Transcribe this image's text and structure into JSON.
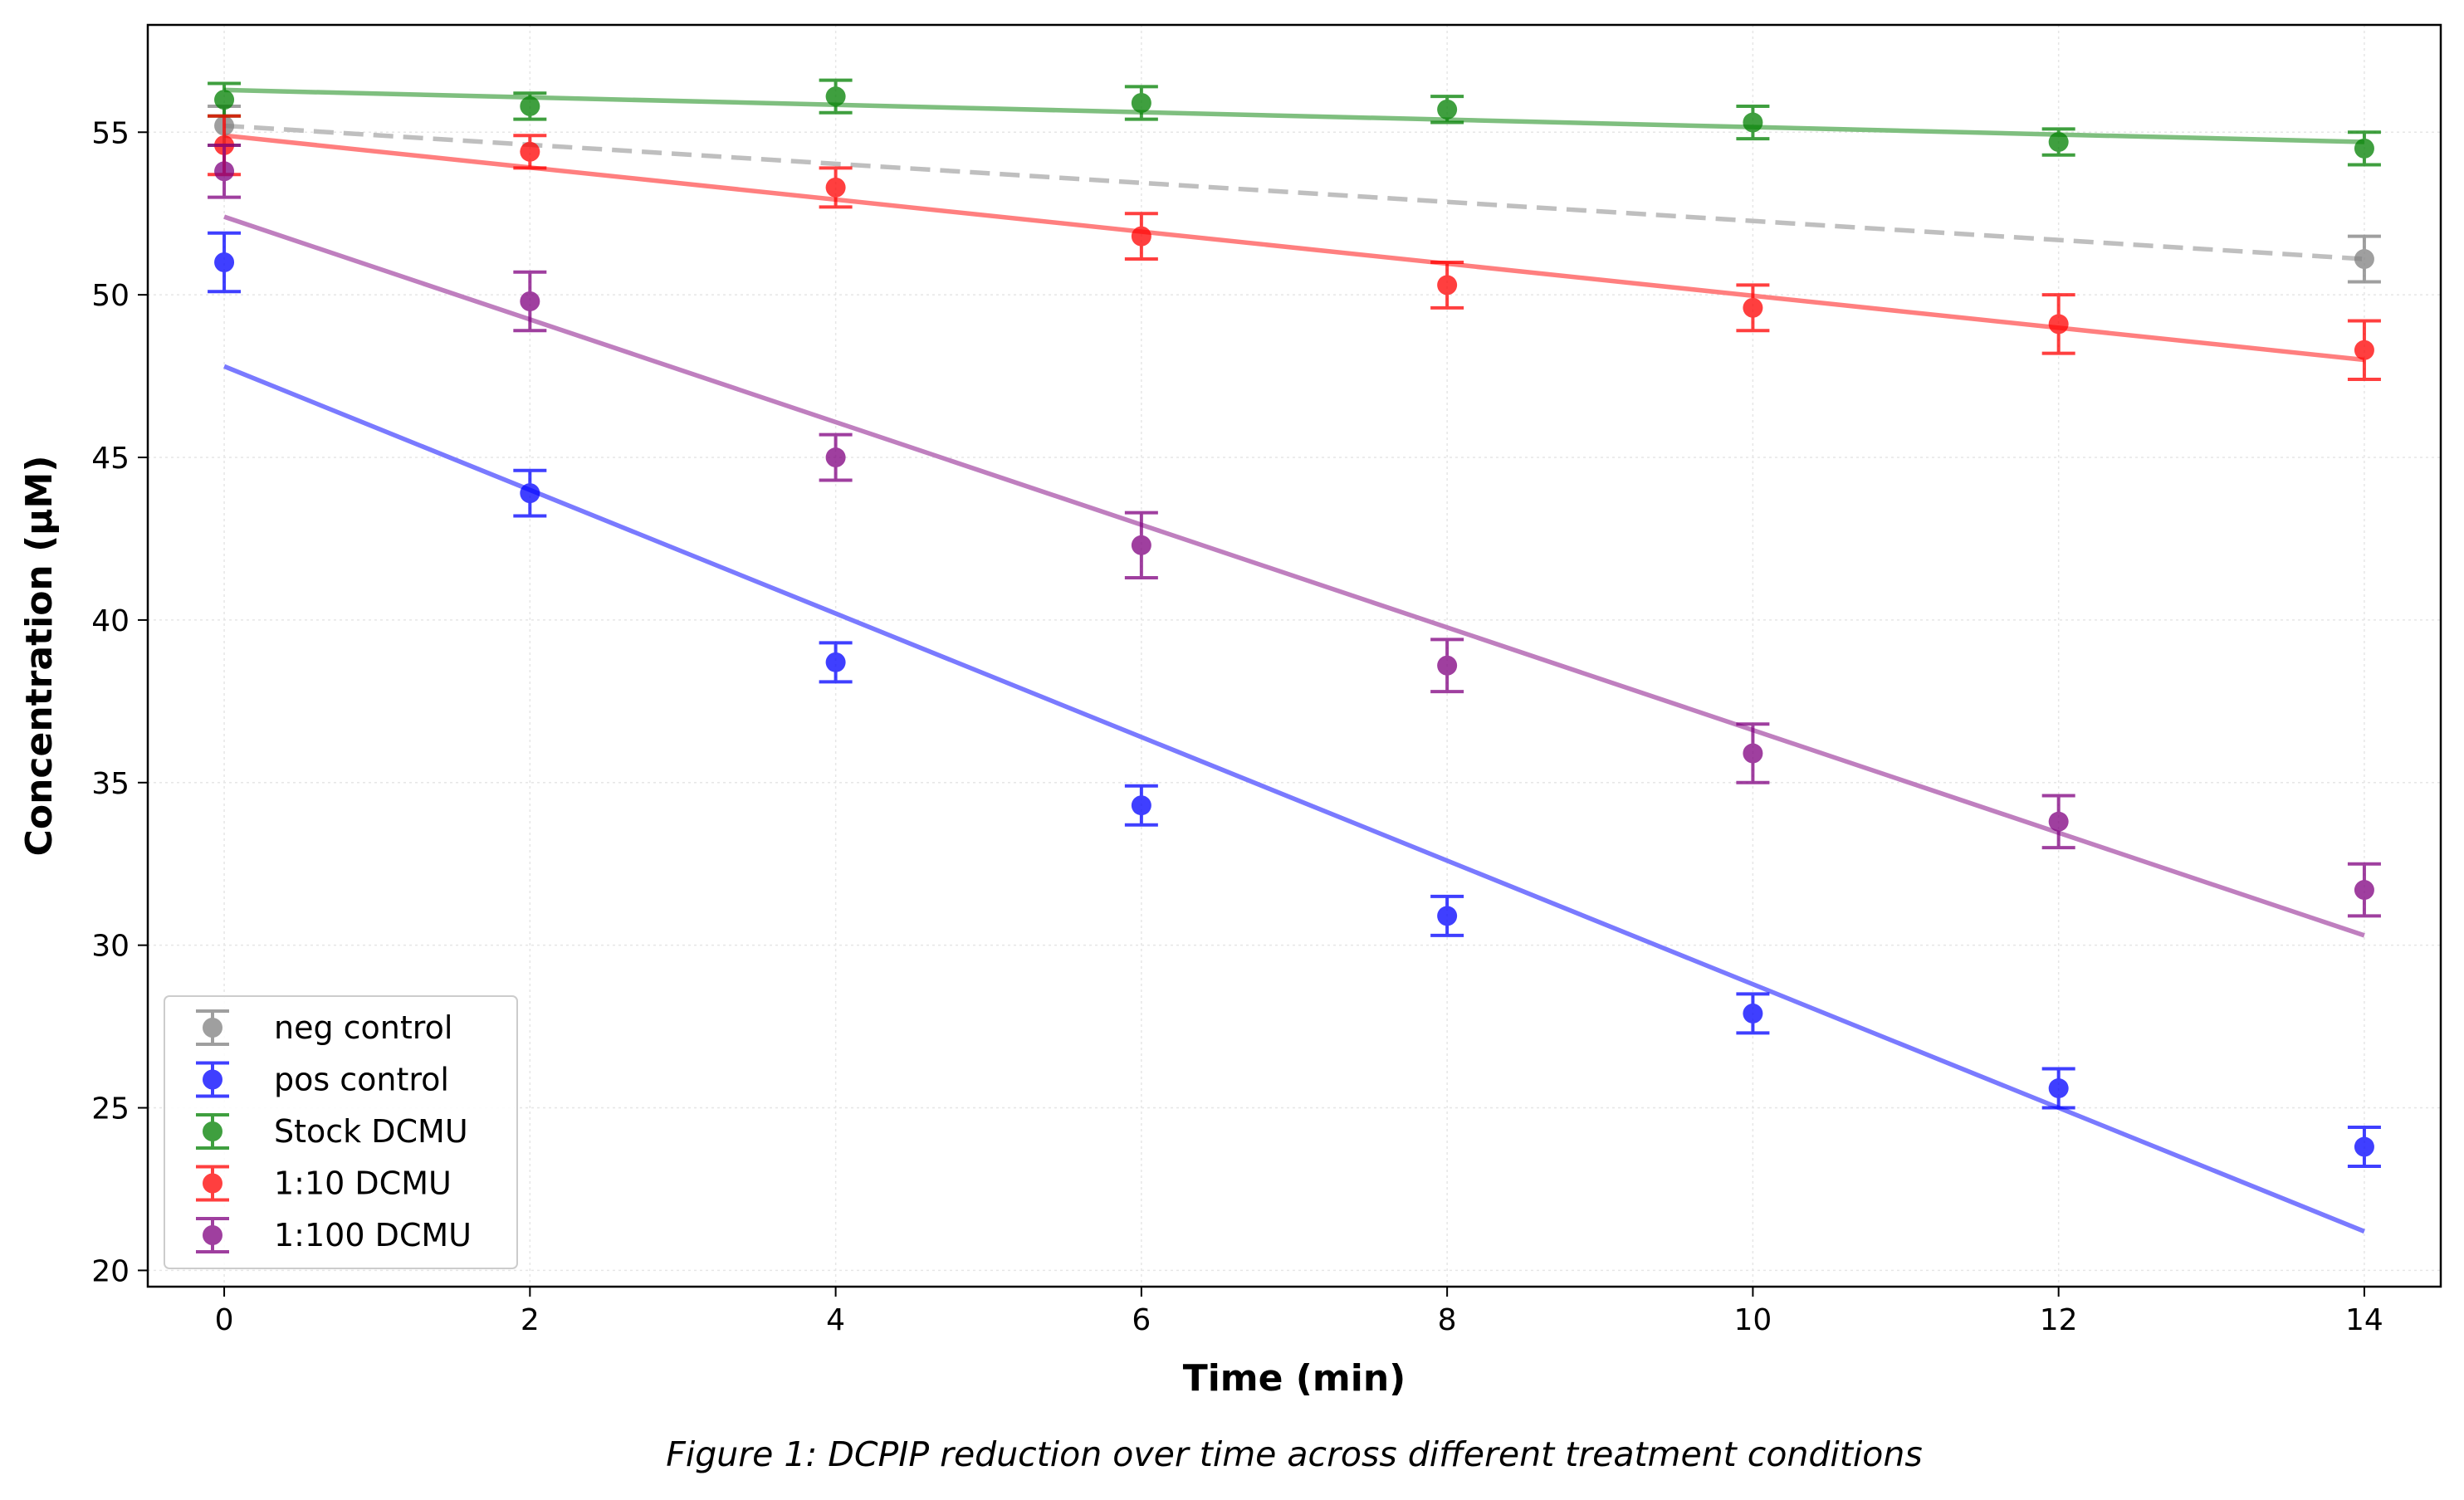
{
  "chart_data": {
    "type": "scatter",
    "xlabel": "Time (min)",
    "ylabel": "Concentration (μM)",
    "caption": "Figure 1: DCPIP reduction over time across different treatment conditions",
    "xlim": [
      -0.5,
      14.5
    ],
    "ylim": [
      19.5,
      58.3
    ],
    "xticks": [
      0,
      2,
      4,
      6,
      8,
      10,
      12,
      14
    ],
    "yticks": [
      20,
      25,
      30,
      35,
      40,
      45,
      50,
      55
    ],
    "grid": true,
    "legend_position": "lower-left",
    "series": [
      {
        "name": "neg control",
        "color": "#808080",
        "x": [
          0,
          14
        ],
        "y": [
          55.2,
          51.1
        ],
        "err": [
          0.6,
          0.7
        ],
        "fit": {
          "x": [
            0,
            14
          ],
          "y": [
            55.2,
            51.1
          ],
          "style": "dashed",
          "color": "#bfbfbf"
        }
      },
      {
        "name": "pos control",
        "color": "#0000ff",
        "x": [
          0,
          2,
          4,
          6,
          8,
          10,
          12,
          14
        ],
        "y": [
          51.0,
          43.9,
          38.7,
          34.3,
          30.9,
          27.9,
          25.6,
          23.8
        ],
        "err": [
          0.9,
          0.7,
          0.6,
          0.6,
          0.6,
          0.6,
          0.6,
          0.6
        ],
        "fit": {
          "x": [
            0,
            14
          ],
          "y": [
            47.8,
            21.2
          ],
          "style": "solid",
          "color": "#7a7aff"
        }
      },
      {
        "name": "Stock DCMU",
        "color": "#008000",
        "x": [
          0,
          2,
          4,
          6,
          8,
          10,
          12,
          14
        ],
        "y": [
          56.0,
          55.8,
          56.1,
          55.9,
          55.7,
          55.3,
          54.7,
          54.5
        ],
        "err": [
          0.5,
          0.4,
          0.5,
          0.5,
          0.4,
          0.5,
          0.4,
          0.5
        ],
        "fit": {
          "x": [
            0,
            14
          ],
          "y": [
            56.3,
            54.7
          ],
          "style": "solid",
          "color": "#7fbf7f"
        }
      },
      {
        "name": "1:10 DCMU",
        "color": "#ff0000",
        "x": [
          0,
          2,
          4,
          6,
          8,
          10,
          12,
          14
        ],
        "y": [
          54.6,
          54.4,
          53.3,
          51.8,
          50.3,
          49.6,
          49.1,
          48.3
        ],
        "err": [
          0.9,
          0.5,
          0.6,
          0.7,
          0.7,
          0.7,
          0.9,
          0.9
        ],
        "fit": {
          "x": [
            0,
            14
          ],
          "y": [
            54.9,
            48.0
          ],
          "style": "solid",
          "color": "#ff7f7f"
        }
      },
      {
        "name": "1:100 DCMU",
        "color": "#800080",
        "x": [
          0,
          2,
          4,
          6,
          8,
          10,
          12,
          14
        ],
        "y": [
          53.8,
          49.8,
          45.0,
          42.3,
          38.6,
          35.9,
          33.8,
          31.7
        ],
        "err": [
          0.8,
          0.9,
          0.7,
          1.0,
          0.8,
          0.9,
          0.8,
          0.8
        ],
        "fit": {
          "x": [
            0,
            14
          ],
          "y": [
            52.4,
            30.3
          ],
          "style": "solid",
          "color": "#bf7fbf"
        }
      }
    ]
  }
}
